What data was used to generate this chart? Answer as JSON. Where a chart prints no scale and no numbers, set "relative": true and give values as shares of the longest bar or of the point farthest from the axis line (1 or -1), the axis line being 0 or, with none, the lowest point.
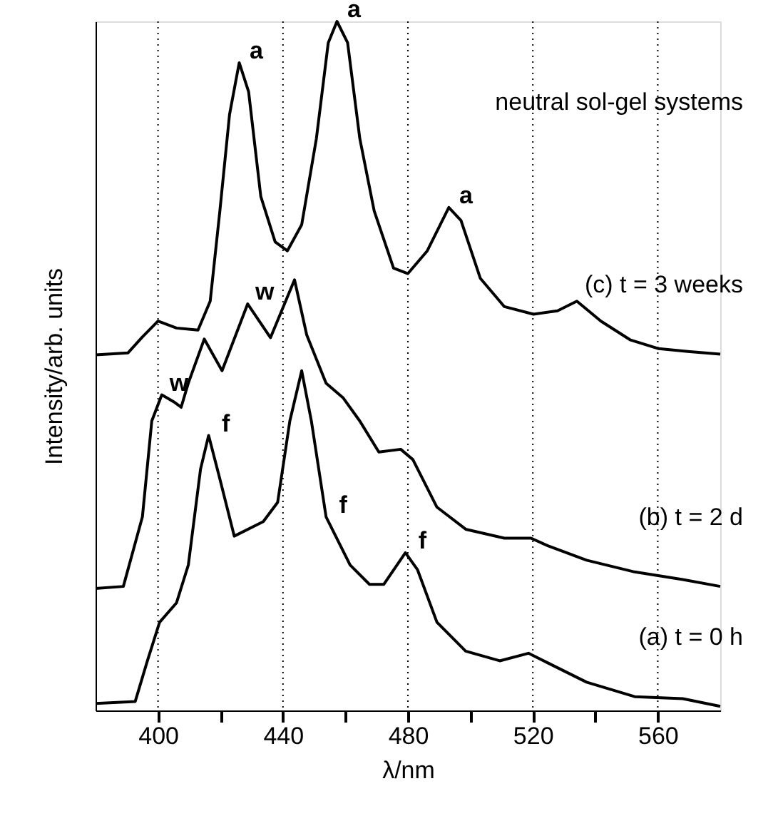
{
  "chart_data": {
    "type": "line",
    "relative": true,
    "xlabel": "λ/nm",
    "ylabel": "Intensity/arb. units",
    "xlim": [
      380,
      580
    ],
    "xticks": [
      400,
      {
        "value": 420,
        "label": null
      },
      440,
      {
        "value": 460,
        "label": null
      },
      480,
      {
        "value": 500,
        "label": null
      },
      520,
      {
        "value": 540,
        "label": null
      },
      560
    ],
    "grid": "x",
    "line_style": "solid",
    "marker": "none",
    "legend": false,
    "series": [
      {
        "name": "(c) t = 3 weeks",
        "color": "#000000",
        "x": [
          380,
          390.4,
          395,
          400,
          405.9,
          412.8,
          416.7,
          419.8,
          422.9,
          426,
          429,
          432.9,
          437.5,
          441.4,
          446,
          450.7,
          454.5,
          457.3,
          460.7,
          464.6,
          469.2,
          475.4,
          480,
          486.2,
          493.1,
          497,
          503.2,
          510.9,
          520.2,
          527.9,
          534.1,
          541.8,
          551.1,
          560.3,
          569.6,
          580
        ],
        "values": [
          0.516,
          0.519,
          0.542,
          0.565,
          0.555,
          0.552,
          0.594,
          0.725,
          0.865,
          0.94,
          0.898,
          0.746,
          0.68,
          0.667,
          0.705,
          0.83,
          0.969,
          1.0,
          0.969,
          0.83,
          0.725,
          0.642,
          0.634,
          0.667,
          0.73,
          0.711,
          0.627,
          0.586,
          0.575,
          0.58,
          0.594,
          0.565,
          0.538,
          0.525,
          0.521,
          0.517
        ]
      },
      {
        "name": "(b) t = 2 d",
        "color": "#000000",
        "x": [
          380,
          388.9,
          395,
          398,
          401.2,
          405,
          407.4,
          409.7,
          414.8,
          420.5,
          428.7,
          436,
          443.7,
          447.6,
          453.8,
          459.2,
          464.6,
          470.7,
          477.7,
          481.6,
          489.3,
          498.5,
          510.9,
          519.4,
          524.8,
          537.2,
          552.6,
          568,
          580
        ],
        "values": [
          0.177,
          0.18,
          0.281,
          0.42,
          0.458,
          0.448,
          0.44,
          0.475,
          0.539,
          0.493,
          0.59,
          0.541,
          0.625,
          0.545,
          0.475,
          0.454,
          0.42,
          0.375,
          0.379,
          0.364,
          0.295,
          0.263,
          0.25,
          0.25,
          0.239,
          0.218,
          0.201,
          0.19,
          0.18
        ]
      },
      {
        "name": "(a) t = 0 h",
        "color": "#000000",
        "x": [
          380,
          392.7,
          396.6,
          400.5,
          405.9,
          409.7,
          413.6,
          416.2,
          419.8,
          424.4,
          433.7,
          438.3,
          442.2,
          446,
          449.1,
          453.8,
          461.5,
          467.7,
          472.3,
          479.2,
          483.1,
          489.3,
          498.5,
          509.4,
          518.6,
          524.8,
          537.2,
          552.6,
          568,
          580
        ],
        "values": [
          0.01,
          0.013,
          0.072,
          0.128,
          0.156,
          0.211,
          0.35,
          0.399,
          0.336,
          0.253,
          0.274,
          0.302,
          0.42,
          0.493,
          0.42,
          0.281,
          0.211,
          0.183,
          0.183,
          0.229,
          0.204,
          0.128,
          0.086,
          0.072,
          0.083,
          0.069,
          0.041,
          0.02,
          0.017,
          0.006
        ]
      }
    ],
    "annotations": [
      "neutral sol-gel systems",
      {
        "text": "a",
        "x": 426,
        "y": 0.94
      },
      {
        "text": "a",
        "x": 457.3,
        "y": 1.0
      },
      {
        "text": "a",
        "x": 493.1,
        "y": 0.73
      },
      {
        "text": "w",
        "x": 428.7,
        "y": 0.59
      },
      {
        "text": "w",
        "x": 401.2,
        "y": 0.458
      },
      {
        "text": "f",
        "x": 416.2,
        "y": 0.399
      },
      {
        "text": "f",
        "x": 453.8,
        "y": 0.281
      },
      {
        "text": "f",
        "x": 479.2,
        "y": 0.229
      }
    ]
  }
}
